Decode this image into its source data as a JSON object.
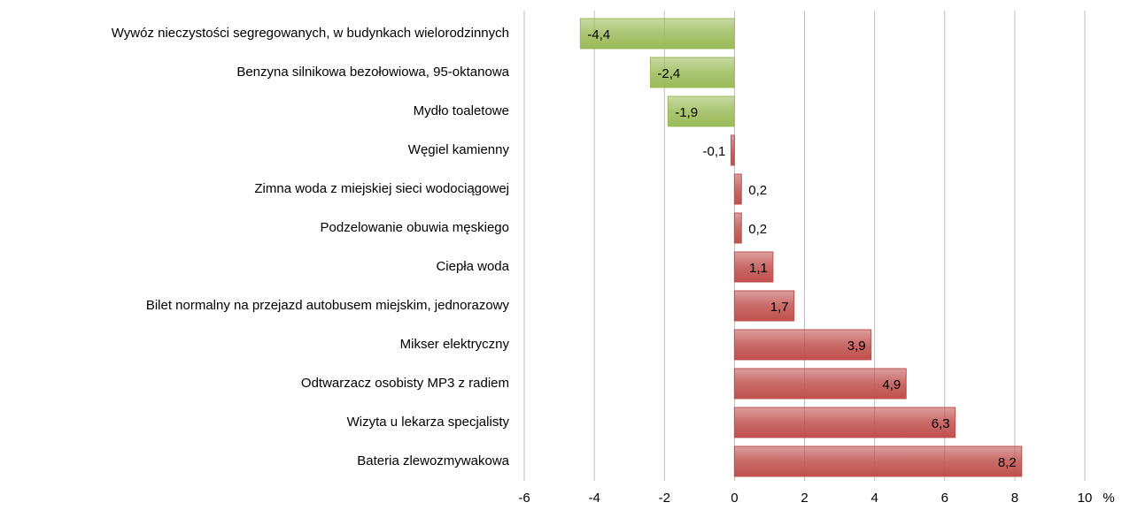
{
  "chart_data": {
    "type": "hbar",
    "categories": [
      "Wywóz nieczystości  segregowanych, w budynkach wielorodzinnych",
      "Benzyna silnikowa bezołowiowa, 95-oktanowa ",
      "Mydło toaletowe",
      "Węgiel kamienny",
      "Zimna woda z miejskiej sieci wodociągowej",
      "Podzelowanie obuwia męskiego",
      "Ciepła woda",
      "Bilet normalny na przejazd autobusem miejskim, jednorazowy",
      "Mikser elektryczny",
      "Odtwarzacz osobisty MP3 z radiem",
      "Wizyta u lekarza specjalisty",
      "Bateria zlewozmywakowa"
    ],
    "values": [
      -4.4,
      -2.4,
      -1.9,
      -0.1,
      0.2,
      0.2,
      1.1,
      1.7,
      3.9,
      4.9,
      6.3,
      8.2
    ],
    "value_labels": [
      "-4,4",
      "-2,4",
      "-1,9",
      "-0,1",
      "0,2",
      "0,2",
      "1,1",
      "1,7",
      "3,9",
      "4,9",
      "6,3",
      "8,2"
    ],
    "colors": [
      "#9bbb59",
      "#9bbb59",
      "#9bbb59",
      "#c0504d",
      "#c0504d",
      "#c0504d",
      "#c0504d",
      "#c0504d",
      "#c0504d",
      "#c0504d",
      "#c0504d",
      "#c0504d"
    ],
    "xlim": [
      -6,
      10
    ],
    "xticks": [
      -6,
      -4,
      -2,
      0,
      2,
      4,
      6,
      8,
      10
    ],
    "xlabel": "%",
    "grid": true
  }
}
